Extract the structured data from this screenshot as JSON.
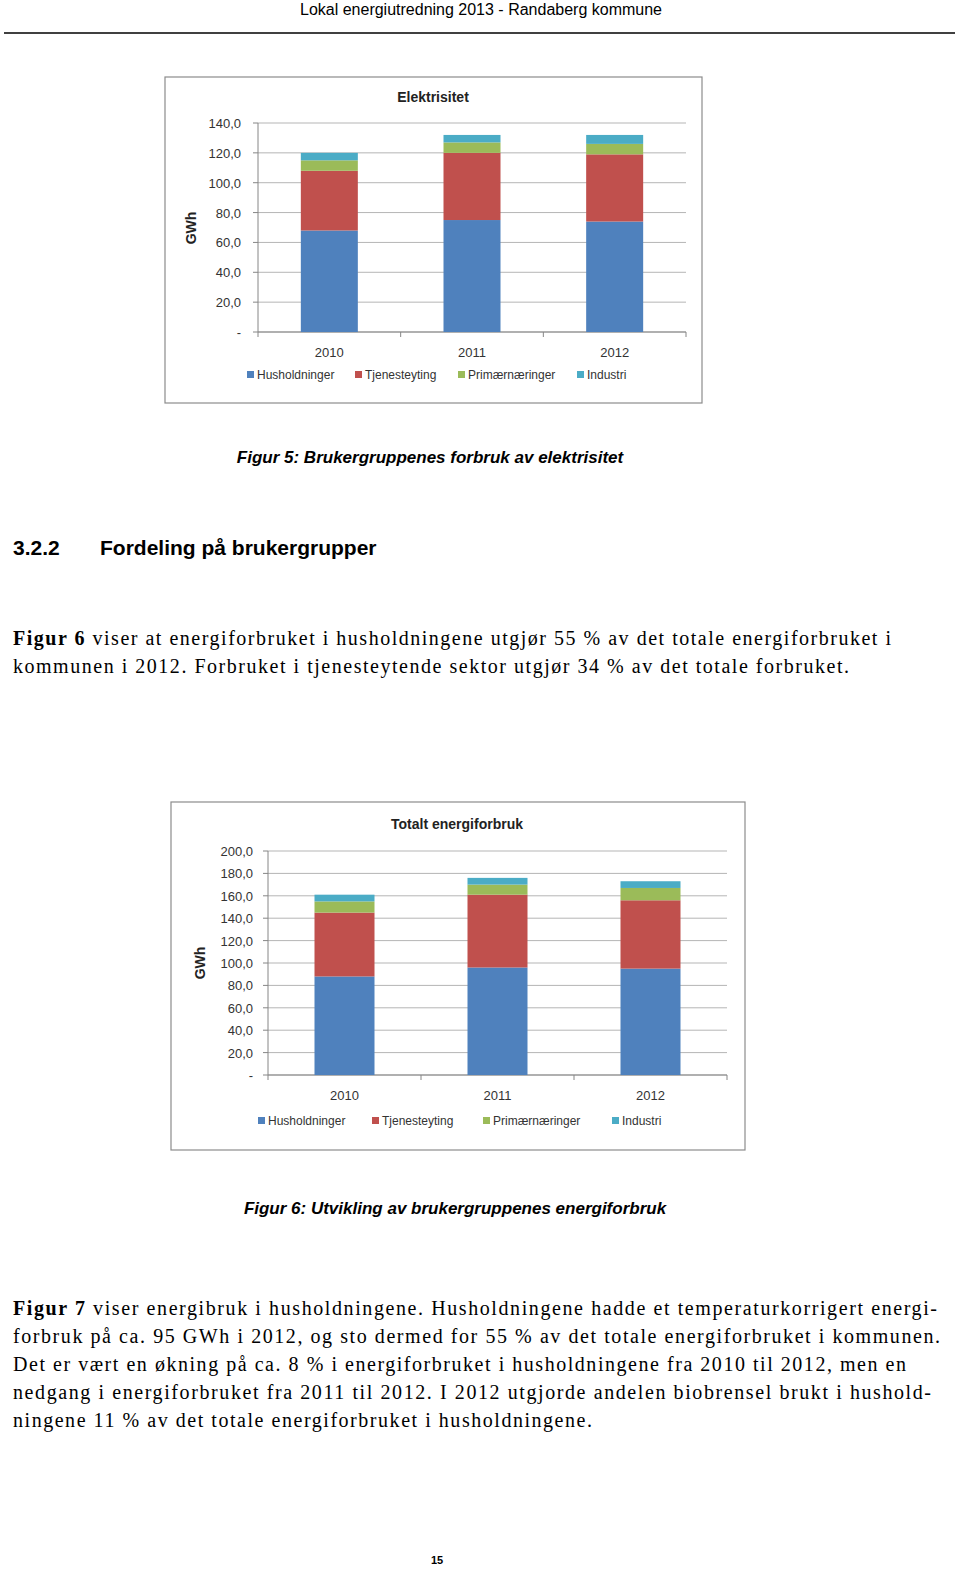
{
  "header": {
    "title": "Lokal energiutredning 2013 - Randaberg kommune"
  },
  "chart_data": [
    {
      "type": "bar",
      "title": "Elektrisitet",
      "y_label": "GWh",
      "categories": [
        "2010",
        "2011",
        "2012"
      ],
      "series": [
        {
          "name": "Husholdninger",
          "color": "#4f81bd",
          "values": [
            68,
            75,
            74
          ]
        },
        {
          "name": "Tjenesteyting",
          "color": "#c0504d",
          "values": [
            40,
            45,
            45
          ]
        },
        {
          "name": "Primærnæringer",
          "color": "#9bbb59",
          "values": [
            7,
            7,
            7
          ]
        },
        {
          "name": "Industri",
          "color": "#4bacc6",
          "values": [
            5,
            5,
            6
          ]
        }
      ],
      "stacked": true,
      "grid": true,
      "legend": "bottom",
      "ylim": [
        0,
        140
      ],
      "yticks": [
        {
          "value": 0,
          "label": "-"
        },
        {
          "value": 20,
          "label": "20,0"
        },
        {
          "value": 40,
          "label": "40,0"
        },
        {
          "value": 60,
          "label": "60,0"
        },
        {
          "value": 80,
          "label": "80,0"
        },
        {
          "value": 100,
          "label": "100,0"
        },
        {
          "value": 120,
          "label": "120,0"
        },
        {
          "value": 140,
          "label": "140,0"
        }
      ]
    },
    {
      "type": "bar",
      "title": "Totalt energiforbruk",
      "y_label": "GWh",
      "categories": [
        "2010",
        "2011",
        "2012"
      ],
      "series": [
        {
          "name": "Husholdninger",
          "color": "#4f81bd",
          "values": [
            88,
            96,
            95
          ]
        },
        {
          "name": "Tjenesteyting",
          "color": "#c0504d",
          "values": [
            57,
            65,
            61
          ]
        },
        {
          "name": "Primærnæringer",
          "color": "#9bbb59",
          "values": [
            10,
            9,
            11
          ]
        },
        {
          "name": "Industri",
          "color": "#4bacc6",
          "values": [
            6,
            6,
            6
          ]
        }
      ],
      "stacked": true,
      "grid": true,
      "legend": "bottom",
      "ylim": [
        0,
        200
      ],
      "yticks": [
        {
          "value": 0,
          "label": "-"
        },
        {
          "value": 20,
          "label": "20,0"
        },
        {
          "value": 40,
          "label": "40,0"
        },
        {
          "value": 60,
          "label": "60,0"
        },
        {
          "value": 80,
          "label": "80,0"
        },
        {
          "value": 100,
          "label": "100,0"
        },
        {
          "value": 120,
          "label": "120,0"
        },
        {
          "value": 140,
          "label": "140,0"
        },
        {
          "value": 160,
          "label": "160,0"
        },
        {
          "value": 180,
          "label": "180,0"
        },
        {
          "value": 200,
          "label": "200,0"
        }
      ]
    }
  ],
  "captions": [
    "Figur 5: Brukergruppenes forbruk av elektrisitet",
    "Figur 6: Utvikling av brukergruppenes energiforbruk"
  ],
  "section": {
    "number": "3.2.2",
    "title": "Fordeling på brukergrupper"
  },
  "paragraphs": [
    {
      "lead": "Figur 6",
      "lines": [
        " viser at energiforbruket i husholdningene utgjør 55 % av det totale energiforbruket i",
        "kommunen i 2012. Forbruket i tjenesteytende sektor utgjør 34 % av det totale forbruket."
      ]
    },
    {
      "lead": "Figur 7",
      "lines": [
        " viser energibruk i husholdningene. Husholdningene hadde et temperaturkorrigert energi-",
        "forbruk på ca. 95 GWh i 2012, og sto dermed for 55 % av det totale energiforbruket i kommunen.",
        "Det er vært en økning på ca. 8 % i energiforbruket i husholdningene fra 2010 til 2012, men en",
        "nedgang i energiforbruket fra 2011 til 2012. I 2012 utgjorde andelen biobrensel brukt i hushold-",
        "ningene 11 % av det totale energiforbruket i husholdningene."
      ]
    }
  ],
  "page_number": "15"
}
